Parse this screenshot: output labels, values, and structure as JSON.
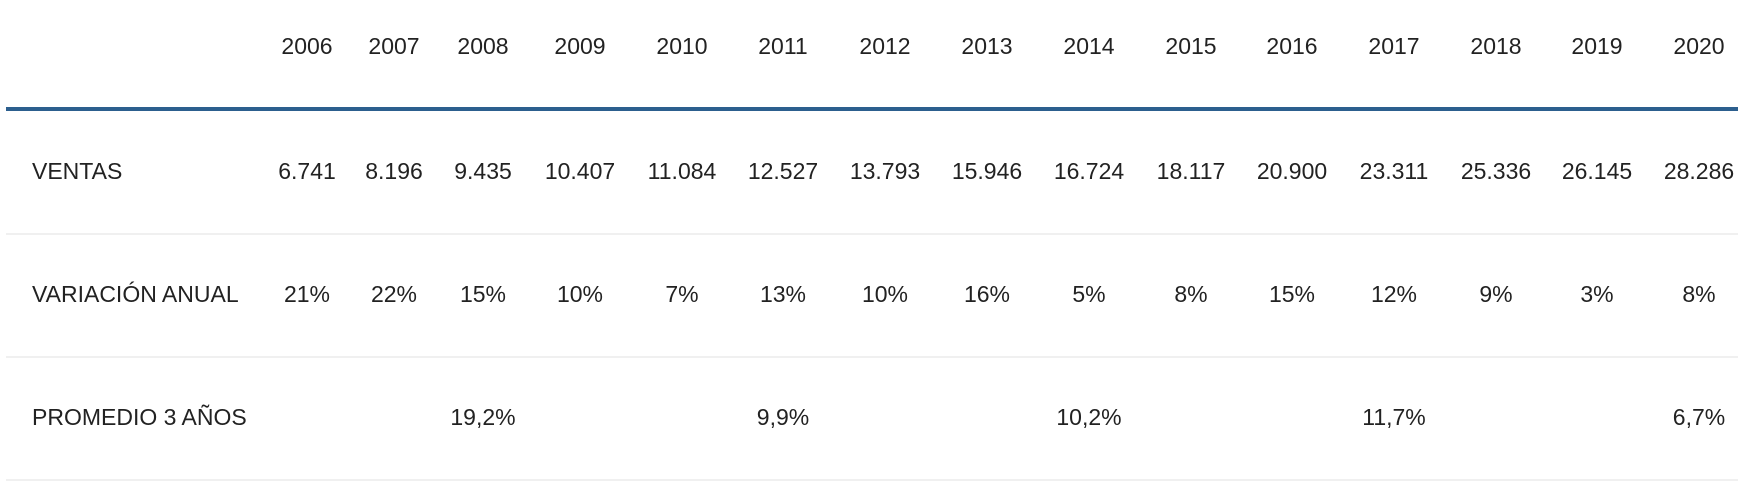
{
  "table": {
    "columns": [
      "2006",
      "2007",
      "2008",
      "2009",
      "2010",
      "2011",
      "2012",
      "2013",
      "2014",
      "2015",
      "2016",
      "2017",
      "2018",
      "2019",
      "2020"
    ],
    "rows": [
      {
        "label": "VENTAS",
        "cells": [
          "6.741",
          "8.196",
          "9.435",
          "10.407",
          "11.084",
          "12.527",
          "13.793",
          "15.946",
          "16.724",
          "18.117",
          "20.900",
          "23.311",
          "25.336",
          "26.145",
          "28.286"
        ]
      },
      {
        "label": "VARIACIÓN ANUAL",
        "cells": [
          "21%",
          "22%",
          "15%",
          "10%",
          "7%",
          "13%",
          "10%",
          "16%",
          "5%",
          "8%",
          "15%",
          "12%",
          "9%",
          "3%",
          "8%"
        ]
      },
      {
        "label": "PROMEDIO 3 AÑOS",
        "cells": [
          null,
          null,
          "19,2%",
          null,
          null,
          "9,9%",
          null,
          null,
          "10,2%",
          null,
          null,
          "11,7%",
          null,
          null,
          "6,7%"
        ]
      }
    ]
  }
}
